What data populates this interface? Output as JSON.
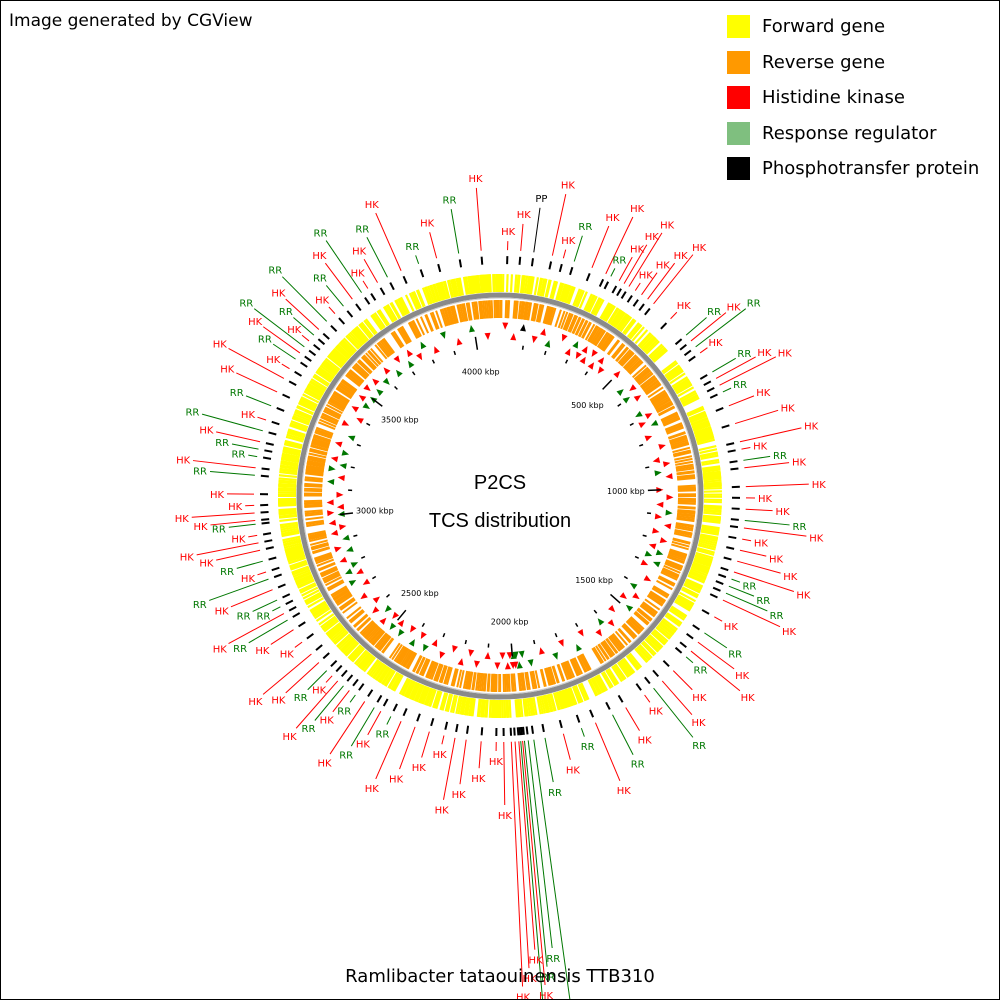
{
  "credit": "Image generated by CGView",
  "legend": [
    {
      "label": "Forward gene",
      "color": "#ffff00"
    },
    {
      "label": "Reverse gene",
      "color": "#ff9900"
    },
    {
      "label": "Histidine kinase",
      "color": "#ff0000"
    },
    {
      "label": "Response regulator",
      "color": "#7fbf7f"
    },
    {
      "label": "Phosphotransfer protein",
      "color": "#000000"
    }
  ],
  "center_title": "P2CS",
  "center_subtitle": "TCS distribution",
  "caption": "Ramlibacter tataouinensis TTB310",
  "colors": {
    "forward": "#ffff00",
    "reverse": "#ff9900",
    "hk": "#ff0000",
    "rr": "#007700",
    "pp": "#000000",
    "backbone": "#888888"
  },
  "map": {
    "genome_length_kbp": 4100,
    "tick_labels": [
      "500 kbp",
      "1000 kbp",
      "1500 kbp",
      "2000 kbp",
      "2500 kbp",
      "3000 kbp",
      "3500 kbp",
      "4000 kbp"
    ],
    "tick_positions_kbp": [
      500,
      1000,
      1500,
      2000,
      2500,
      3000,
      3500,
      4000
    ],
    "features": [
      {
        "kbp": 20,
        "type": "HK"
      },
      {
        "kbp": 55,
        "type": "HK"
      },
      {
        "kbp": 90,
        "type": "PP"
      },
      {
        "kbp": 140,
        "type": "HK"
      },
      {
        "kbp": 170,
        "type": "HK"
      },
      {
        "kbp": 200,
        "type": "RR"
      },
      {
        "kbp": 250,
        "type": "HK"
      },
      {
        "kbp": 290,
        "type": "HK"
      },
      {
        "kbp": 305,
        "type": "RR"
      },
      {
        "kbp": 330,
        "type": "HK"
      },
      {
        "kbp": 345,
        "type": "HK"
      },
      {
        "kbp": 360,
        "type": "HK"
      },
      {
        "kbp": 380,
        "type": "HK"
      },
      {
        "kbp": 400,
        "type": "HK"
      },
      {
        "kbp": 420,
        "type": "HK"
      },
      {
        "kbp": 440,
        "type": "HK"
      },
      {
        "kbp": 500,
        "type": "HK"
      },
      {
        "kbp": 560,
        "type": "RR"
      },
      {
        "kbp": 580,
        "type": "HK"
      },
      {
        "kbp": 600,
        "type": "RR"
      },
      {
        "kbp": 620,
        "type": "HK"
      },
      {
        "kbp": 680,
        "type": "RR"
      },
      {
        "kbp": 700,
        "type": "HK"
      },
      {
        "kbp": 720,
        "type": "HK"
      },
      {
        "kbp": 740,
        "type": "RR"
      },
      {
        "kbp": 780,
        "type": "HK"
      },
      {
        "kbp": 830,
        "type": "HK"
      },
      {
        "kbp": 880,
        "type": "HK"
      },
      {
        "kbp": 900,
        "type": "HK"
      },
      {
        "kbp": 930,
        "type": "RR"
      },
      {
        "kbp": 950,
        "type": "HK"
      },
      {
        "kbp": 1000,
        "type": "HK"
      },
      {
        "kbp": 1030,
        "type": "HK"
      },
      {
        "kbp": 1060,
        "type": "HK"
      },
      {
        "kbp": 1090,
        "type": "RR"
      },
      {
        "kbp": 1110,
        "type": "HK"
      },
      {
        "kbp": 1140,
        "type": "HK"
      },
      {
        "kbp": 1170,
        "type": "HK"
      },
      {
        "kbp": 1200,
        "type": "HK"
      },
      {
        "kbp": 1230,
        "type": "HK"
      },
      {
        "kbp": 1250,
        "type": "RR"
      },
      {
        "kbp": 1270,
        "type": "RR"
      },
      {
        "kbp": 1290,
        "type": "RR"
      },
      {
        "kbp": 1310,
        "type": "HK"
      },
      {
        "kbp": 1360,
        "type": "HK"
      },
      {
        "kbp": 1410,
        "type": "RR"
      },
      {
        "kbp": 1440,
        "type": "HK"
      },
      {
        "kbp": 1470,
        "type": "HK"
      },
      {
        "kbp": 1490,
        "type": "RR"
      },
      {
        "kbp": 1540,
        "type": "HK"
      },
      {
        "kbp": 1580,
        "type": "HK"
      },
      {
        "kbp": 1610,
        "type": "RR"
      },
      {
        "kbp": 1640,
        "type": "HK"
      },
      {
        "kbp": 1700,
        "type": "HK"
      },
      {
        "kbp": 1740,
        "type": "RR"
      },
      {
        "kbp": 1790,
        "type": "HK"
      },
      {
        "kbp": 1830,
        "type": "RR"
      },
      {
        "kbp": 1880,
        "type": "HK"
      },
      {
        "kbp": 1930,
        "type": "RR"
      },
      {
        "kbp": 1960,
        "type": "RR"
      },
      {
        "kbp": 1975,
        "type": "RR"
      },
      {
        "kbp": 1985,
        "type": "RR"
      },
      {
        "kbp": 1990,
        "type": "HK"
      },
      {
        "kbp": 1995,
        "type": "RR"
      },
      {
        "kbp": 2000,
        "type": "HK"
      },
      {
        "kbp": 2010,
        "type": "HK"
      },
      {
        "kbp": 2020,
        "type": "HK"
      },
      {
        "kbp": 2040,
        "type": "HK"
      },
      {
        "kbp": 2060,
        "type": "HK"
      },
      {
        "kbp": 2100,
        "type": "HK"
      },
      {
        "kbp": 2140,
        "type": "HK"
      },
      {
        "kbp": 2170,
        "type": "HK"
      },
      {
        "kbp": 2200,
        "type": "HK"
      },
      {
        "kbp": 2240,
        "type": "HK"
      },
      {
        "kbp": 2280,
        "type": "HK"
      },
      {
        "kbp": 2320,
        "type": "HK"
      },
      {
        "kbp": 2350,
        "type": "RR"
      },
      {
        "kbp": 2380,
        "type": "HK"
      },
      {
        "kbp": 2400,
        "type": "RR"
      },
      {
        "kbp": 2430,
        "type": "HK"
      },
      {
        "kbp": 2460,
        "type": "RR"
      },
      {
        "kbp": 2480,
        "type": "HK"
      },
      {
        "kbp": 2500,
        "type": "RR"
      },
      {
        "kbp": 2520,
        "type": "HK"
      },
      {
        "kbp": 2540,
        "type": "HK"
      },
      {
        "kbp": 2560,
        "type": "RR"
      },
      {
        "kbp": 2590,
        "type": "HK"
      },
      {
        "kbp": 2620,
        "type": "HK"
      },
      {
        "kbp": 2660,
        "type": "HK"
      },
      {
        "kbp": 2700,
        "type": "HK"
      },
      {
        "kbp": 2730,
        "type": "RR"
      },
      {
        "kbp": 2750,
        "type": "HK"
      },
      {
        "kbp": 2770,
        "type": "RR"
      },
      {
        "kbp": 2790,
        "type": "RR"
      },
      {
        "kbp": 2820,
        "type": "HK"
      },
      {
        "kbp": 2850,
        "type": "RR"
      },
      {
        "kbp": 2870,
        "type": "HK"
      },
      {
        "kbp": 2900,
        "type": "RR"
      },
      {
        "kbp": 2930,
        "type": "HK"
      },
      {
        "kbp": 2950,
        "type": "HK"
      },
      {
        "kbp": 2970,
        "type": "HK"
      },
      {
        "kbp": 3000,
        "type": "RR"
      },
      {
        "kbp": 3010,
        "type": "HK"
      },
      {
        "kbp": 3030,
        "type": "HK"
      },
      {
        "kbp": 3050,
        "type": "HK"
      },
      {
        "kbp": 3080,
        "type": "HK"
      },
      {
        "kbp": 3130,
        "type": "RR"
      },
      {
        "kbp": 3150,
        "type": "HK"
      },
      {
        "kbp": 3180,
        "type": "RR"
      },
      {
        "kbp": 3200,
        "type": "RR"
      },
      {
        "kbp": 3220,
        "type": "HK"
      },
      {
        "kbp": 3250,
        "type": "RR"
      },
      {
        "kbp": 3280,
        "type": "HK"
      },
      {
        "kbp": 3320,
        "type": "RR"
      },
      {
        "kbp": 3360,
        "type": "HK"
      },
      {
        "kbp": 3400,
        "type": "HK"
      },
      {
        "kbp": 3430,
        "type": "HK"
      },
      {
        "kbp": 3460,
        "type": "RR"
      },
      {
        "kbp": 3480,
        "type": "HK"
      },
      {
        "kbp": 3500,
        "type": "RR"
      },
      {
        "kbp": 3520,
        "type": "HK"
      },
      {
        "kbp": 3540,
        "type": "RR"
      },
      {
        "kbp": 3560,
        "type": "HK"
      },
      {
        "kbp": 3590,
        "type": "RR"
      },
      {
        "kbp": 3620,
        "type": "HK"
      },
      {
        "kbp": 3650,
        "type": "RR"
      },
      {
        "kbp": 3680,
        "type": "HK"
      },
      {
        "kbp": 3710,
        "type": "RR"
      },
      {
        "kbp": 3730,
        "type": "HK"
      },
      {
        "kbp": 3760,
        "type": "HK"
      },
      {
        "kbp": 3790,
        "type": "RR"
      },
      {
        "kbp": 3830,
        "type": "HK"
      },
      {
        "kbp": 3880,
        "type": "RR"
      },
      {
        "kbp": 3930,
        "type": "HK"
      },
      {
        "kbp": 3990,
        "type": "RR"
      },
      {
        "kbp": 4050,
        "type": "HK"
      }
    ]
  }
}
